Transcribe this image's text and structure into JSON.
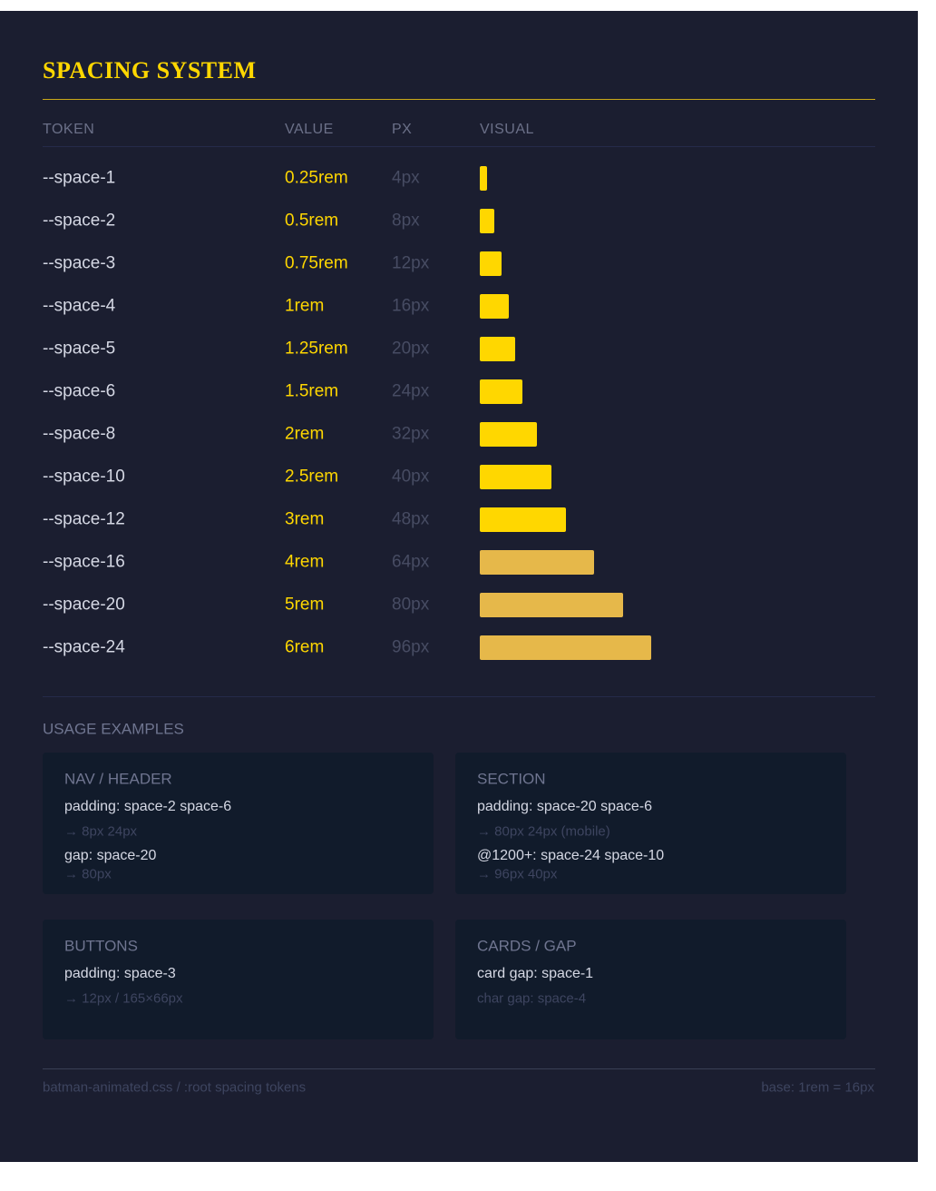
{
  "header": {
    "title": "SPACING SYSTEM"
  },
  "table": {
    "columns": [
      "TOKEN",
      "VALUE",
      "PX",
      "VISUAL"
    ],
    "rows": [
      [
        "--space-1",
        "0.25rem",
        "4px"
      ],
      [
        "--space-2",
        "0.5rem",
        "8px"
      ],
      [
        "--space-3",
        "0.75rem",
        "12px"
      ],
      [
        "--space-4",
        "1rem",
        "16px"
      ],
      [
        "--space-5",
        "1.25rem",
        "20px"
      ],
      [
        "--space-6",
        "1.5rem",
        "24px"
      ],
      [
        "--space-8",
        "2rem",
        "32px"
      ],
      [
        "--space-10",
        "2.5rem",
        "40px"
      ],
      [
        "--space-12",
        "3rem",
        "48px"
      ],
      [
        "--space-16",
        "4rem",
        "64px"
      ],
      [
        "--space-20",
        "5rem",
        "80px"
      ],
      [
        "--space-24",
        "6rem",
        "96px"
      ]
    ]
  },
  "usage": {
    "title": "USAGE EXAMPLES",
    "cards": [
      {
        "title": "NAV / HEADER",
        "lines": [
          "padding: space-2 space-6",
          "→ 8px 24px",
          "gap: space-20",
          "→ 80px"
        ]
      },
      {
        "title": "SECTION",
        "lines": [
          "padding: space-20 space-6",
          "→ 80px 24px (mobile)",
          "@1200+: space-24 space-10",
          "→ 96px 40px"
        ]
      },
      {
        "title": "BUTTONS",
        "lines": [
          "padding: space-3",
          "→ 12px / 165×66px"
        ]
      },
      {
        "title": "CARDS / GAP",
        "lines": [
          "card gap: space-1",
          "char gap: space-4"
        ]
      }
    ]
  },
  "footer": {
    "left": "batman-animated.css / :root spacing tokens",
    "right": "base: 1rem = 16px"
  }
}
